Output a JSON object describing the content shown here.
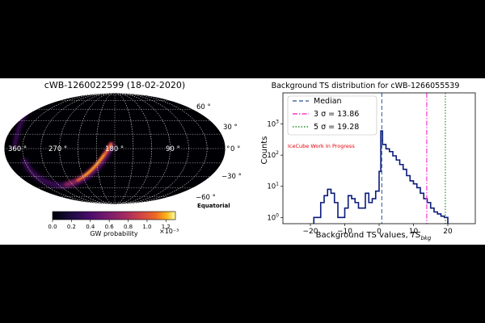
{
  "chart_data": [
    {
      "type": "heatmap",
      "projection": "mollweide",
      "title": "cWB-1260022599 (18-02-2020)",
      "ra_ticks": [
        "360 °",
        "270 °",
        "180 °",
        "90 °",
        "0 °"
      ],
      "dec_ticks": [
        "60 °",
        "30 °",
        "0 °",
        "−30 °",
        "−60 °"
      ],
      "frame_label": "Equatorial",
      "colorbar": {
        "label": "GW probability",
        "tick_labels": [
          "0.0",
          "0.2",
          "0.4",
          "0.6",
          "0.8",
          "1.0",
          "1.2"
        ],
        "multiplier": "×10⁻³",
        "vmin": 0.0,
        "vmax": 0.0013,
        "colormap": "inferno"
      },
      "hotspot": {
        "ra_range_deg": [
          150,
          345
        ],
        "dec_range_deg": [
          -70,
          60
        ],
        "peak_dec_deg": -10
      },
      "colors": {
        "background": "#000004",
        "grid": "#d0d0d0"
      }
    },
    {
      "type": "histogram",
      "title": "Background TS distribution for cWB-1266055539",
      "xlabel": "Background TS values, ",
      "xlabel_math": "TS",
      "xlabel_sub": "bkg",
      "ylabel": "Counts",
      "xlim": [
        -28,
        28
      ],
      "ylim_log10": [
        -0.2,
        4.0
      ],
      "yscale": "log",
      "x_ticks": [
        -20,
        -10,
        0,
        10,
        20
      ],
      "y_ticks": [
        0,
        1,
        2,
        3
      ],
      "bin_width": 1,
      "bins_left": [
        -19,
        -18,
        -17,
        -16,
        -15,
        -14,
        -13,
        -12,
        -11,
        -10,
        -9,
        -8,
        -7,
        -6,
        -5,
        -4,
        -3,
        -2,
        -1,
        0,
        0.5,
        1,
        2,
        3,
        4,
        5,
        6,
        7,
        8,
        9,
        10,
        11,
        12,
        13,
        14,
        15,
        16,
        17,
        18,
        19
      ],
      "counts": [
        1,
        1,
        3,
        5,
        8,
        6,
        3,
        1,
        1,
        2,
        5,
        4,
        3,
        2,
        2,
        6,
        3,
        4,
        7,
        30,
        600,
        220,
        160,
        130,
        95,
        70,
        50,
        35,
        22,
        15,
        12,
        9,
        6,
        4,
        3,
        2,
        1.5,
        1.3,
        1.1,
        1
      ],
      "annotation": "IceCube Work In Progress",
      "lines": [
        {
          "label": "Median",
          "x": 0.8,
          "color": "#4a6fa5",
          "style": "dashed"
        },
        {
          "label": "3 σ =  13.86",
          "x": 13.86,
          "color": "#ff33cc",
          "style": "dashdot"
        },
        {
          "label": "5 σ =  19.28",
          "x": 19.28,
          "color": "#228b22",
          "style": "dotted"
        }
      ],
      "colors": {
        "histogram": "#0a1a7a",
        "annotation": "#e8000b"
      }
    }
  ]
}
